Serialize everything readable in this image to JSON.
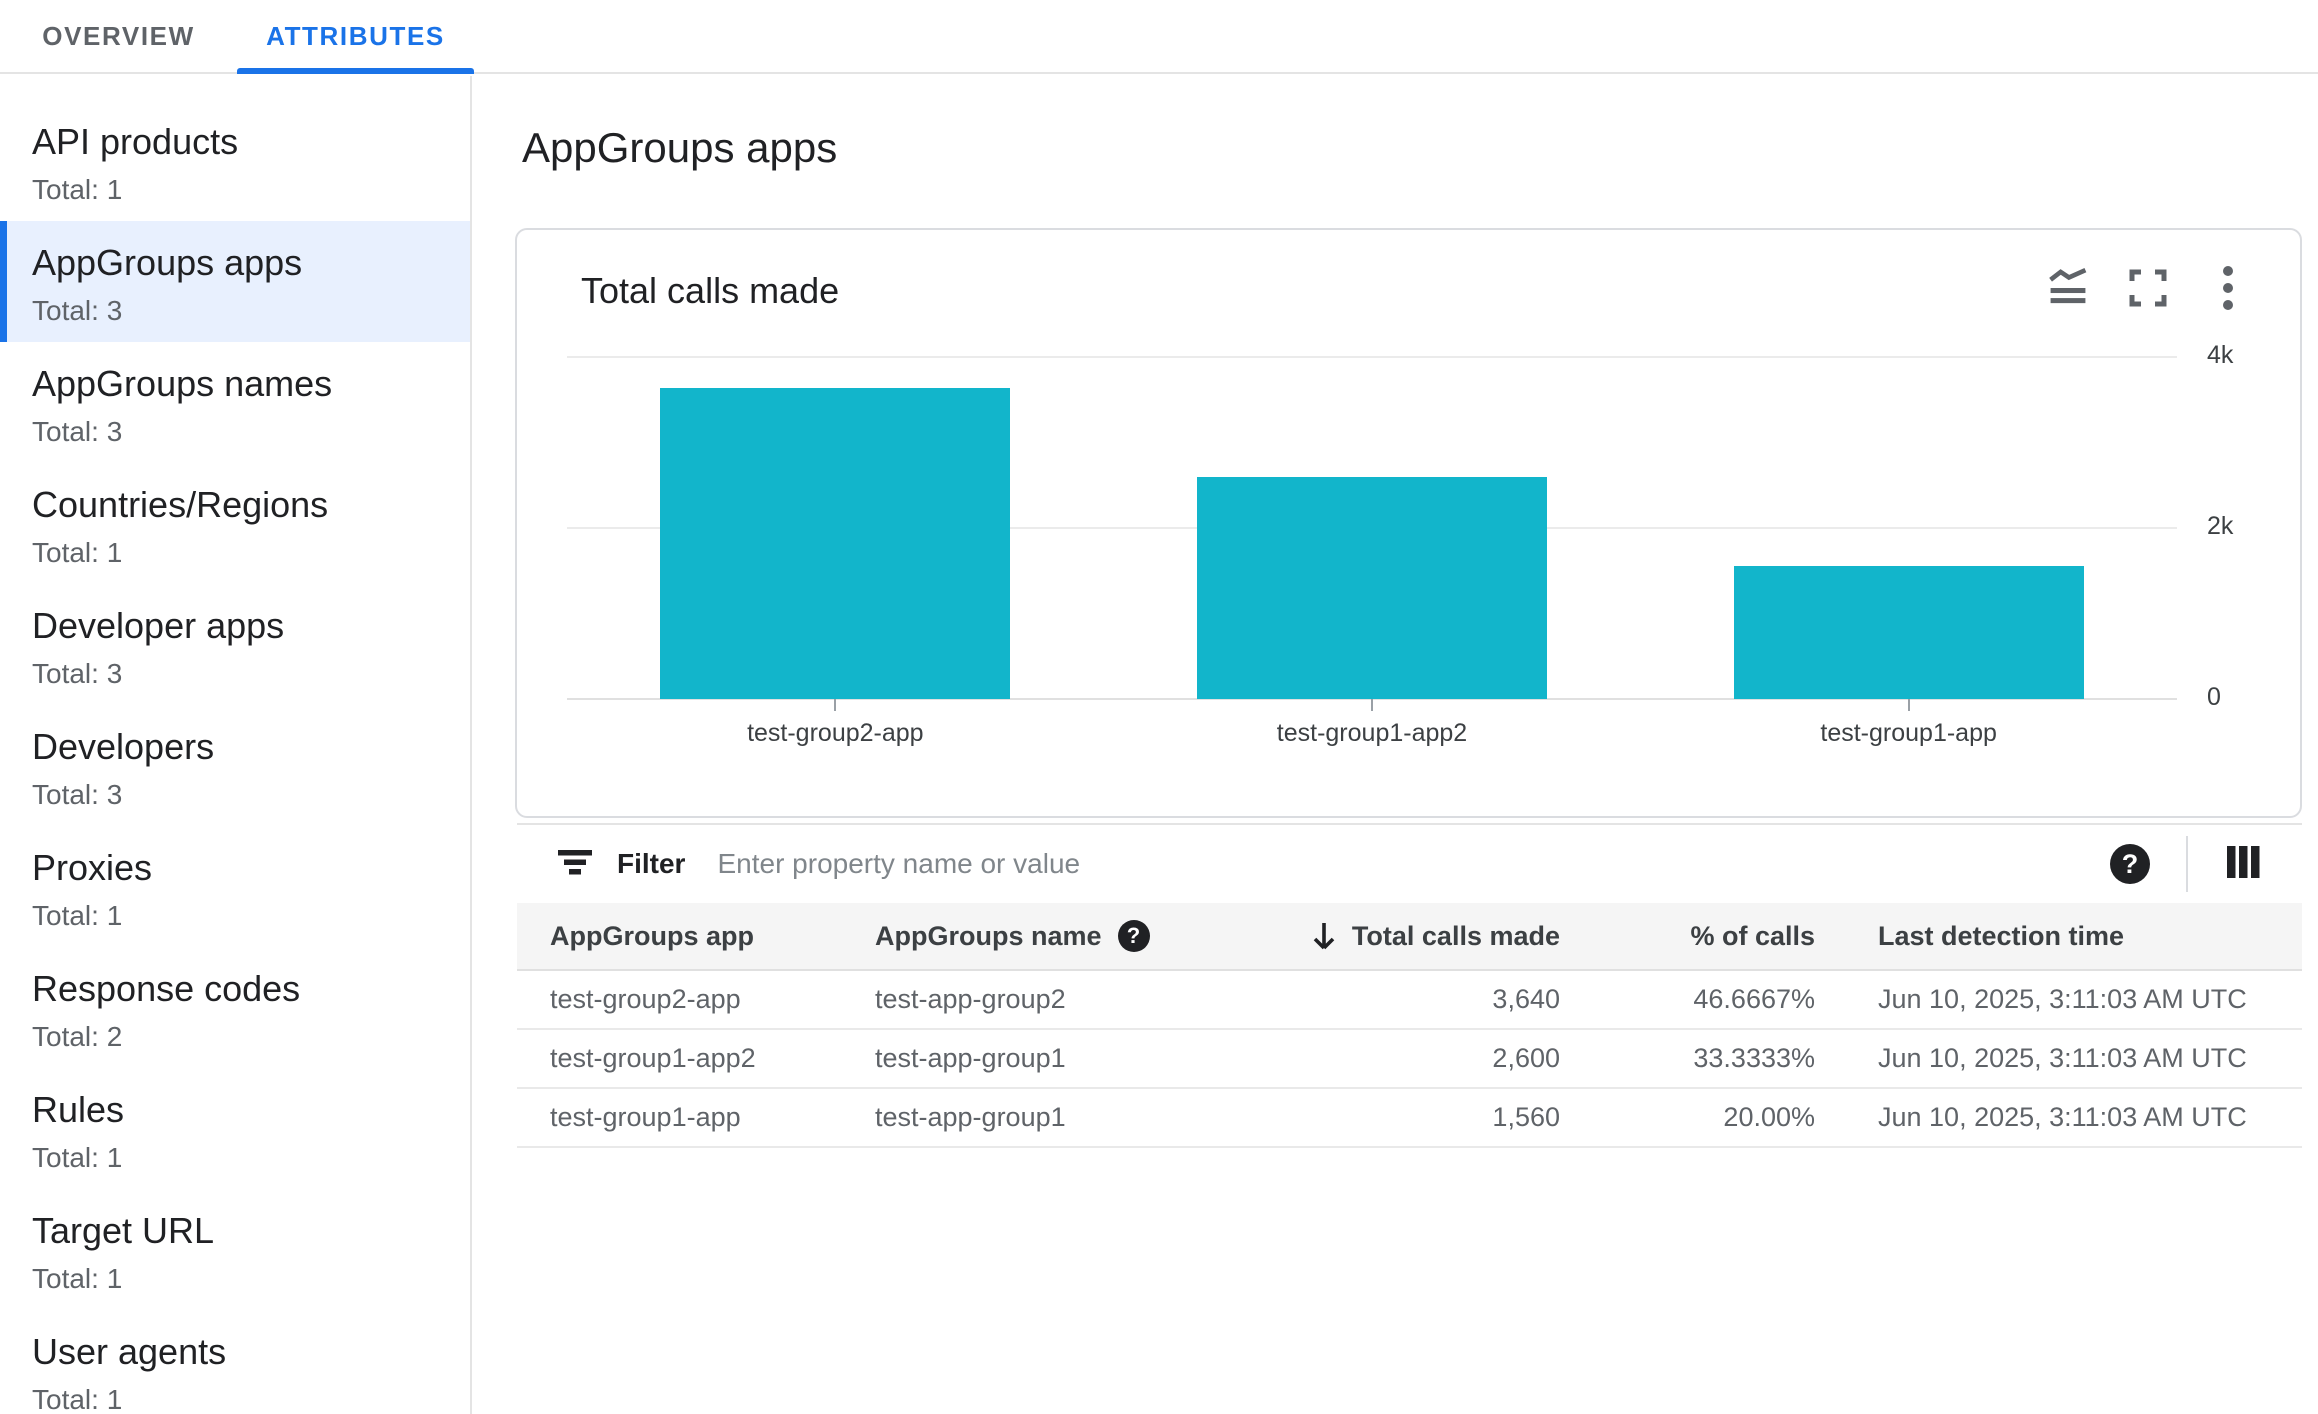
{
  "tabs": [
    {
      "label": "OVERVIEW",
      "active": false
    },
    {
      "label": "ATTRIBUTES",
      "active": true
    }
  ],
  "sidebar": {
    "items": [
      {
        "label": "API products",
        "total": "Total: 1",
        "selected": false
      },
      {
        "label": "AppGroups apps",
        "total": "Total: 3",
        "selected": true
      },
      {
        "label": "AppGroups names",
        "total": "Total: 3",
        "selected": false
      },
      {
        "label": "Countries/Regions",
        "total": "Total: 1",
        "selected": false
      },
      {
        "label": "Developer apps",
        "total": "Total: 3",
        "selected": false
      },
      {
        "label": "Developers",
        "total": "Total: 3",
        "selected": false
      },
      {
        "label": "Proxies",
        "total": "Total: 1",
        "selected": false
      },
      {
        "label": "Response codes",
        "total": "Total: 2",
        "selected": false
      },
      {
        "label": "Rules",
        "total": "Total: 1",
        "selected": false
      },
      {
        "label": "Target URL",
        "total": "Total: 1",
        "selected": false
      },
      {
        "label": "User agents",
        "total": "Total: 1",
        "selected": false
      }
    ]
  },
  "main": {
    "title": "AppGroups apps"
  },
  "chart_card": {
    "title": "Total calls made",
    "icons": [
      "area-chart",
      "fullscreen",
      "more-vert"
    ]
  },
  "chart_data": {
    "type": "bar",
    "title": "Total calls made",
    "categories": [
      "test-group2-app",
      "test-group1-app2",
      "test-group1-app"
    ],
    "values": [
      3640,
      2600,
      1560
    ],
    "xlabel": "",
    "ylabel": "",
    "ylim": [
      0,
      4000
    ],
    "yticks": [
      {
        "value": 4000,
        "label": "4k"
      },
      {
        "value": 2000,
        "label": "2k"
      },
      {
        "value": 0,
        "label": "0"
      }
    ],
    "bar_color": "#12b5cb",
    "grid": "horizontal",
    "legend": "none"
  },
  "filter": {
    "label": "Filter",
    "placeholder": "Enter property name or value"
  },
  "table": {
    "columns": [
      {
        "label": "AppGroups app"
      },
      {
        "label": "AppGroups name",
        "help": true
      },
      {
        "label": "Total calls made",
        "sort": "desc"
      },
      {
        "label": "% of calls"
      },
      {
        "label": "Last detection time"
      }
    ],
    "rows": [
      {
        "cells": [
          "test-group2-app",
          "test-app-group2",
          "3,640",
          "46.6667%",
          "Jun 10, 2025, 3:11:03 AM UTC"
        ]
      },
      {
        "cells": [
          "test-group1-app2",
          "test-app-group1",
          "2,600",
          "33.3333%",
          "Jun 10, 2025, 3:11:03 AM UTC"
        ]
      },
      {
        "cells": [
          "test-group1-app",
          "test-app-group1",
          "1,560",
          "20.00%",
          "Jun 10, 2025, 3:11:03 AM UTC"
        ]
      }
    ]
  },
  "colors": {
    "accent_blue": "#1a73e8",
    "selected_bg": "#e8f0fe",
    "bar_teal": "#12b5cb",
    "border": "#e4e4e4",
    "secondary_text": "#5f6368",
    "header_bg": "#f5f5f5"
  }
}
